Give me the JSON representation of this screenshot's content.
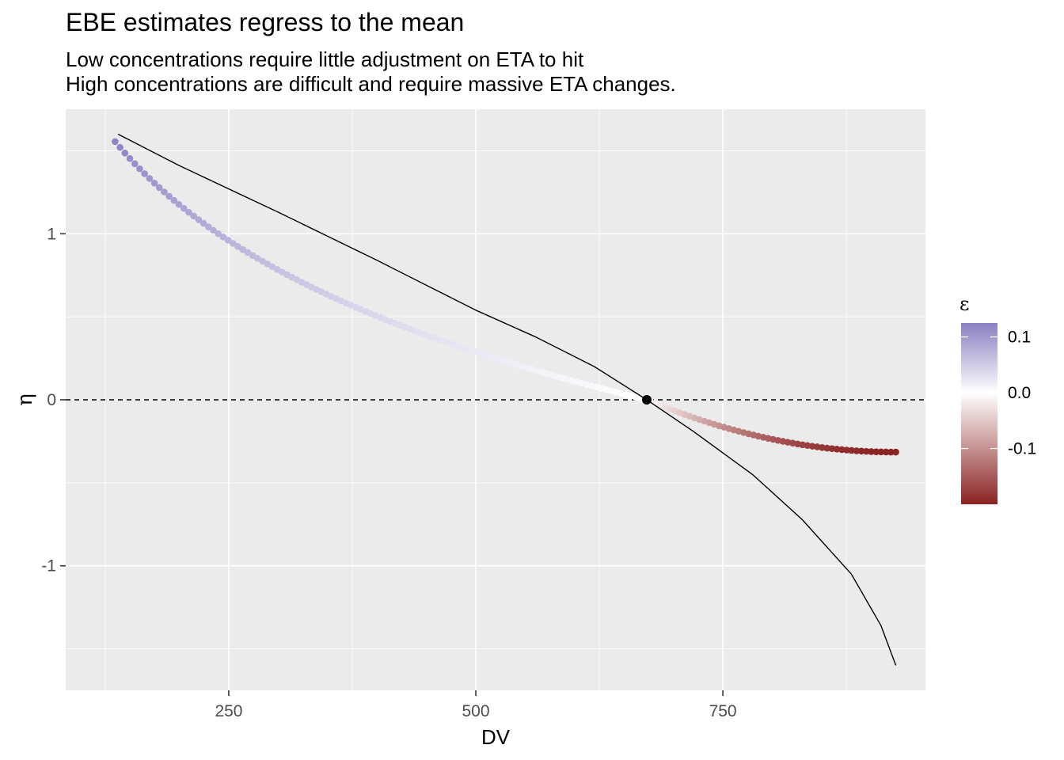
{
  "chart_data": {
    "type": "scatter",
    "title": "EBE estimates regress to the mean",
    "subtitle_lines": [
      "Low concentrations require little adjustment on ETA to hit",
      "High concentrations are difficult and require massive ETA changes."
    ],
    "xlabel": "DV",
    "ylabel": "η",
    "xlim": [
      85,
      955
    ],
    "ylim": [
      -1.75,
      1.75
    ],
    "x_ticks": [
      250,
      500,
      750
    ],
    "x_tick_labels": [
      "250",
      "500",
      "750"
    ],
    "y_ticks": [
      -1,
      0,
      1
    ],
    "y_tick_labels": [
      "-1",
      "0",
      "1"
    ],
    "grid": true,
    "panel_background": "#EBEBEB",
    "grid_color": "#FFFFFF",
    "reference_line": {
      "y": 0,
      "style": "dashed",
      "color": "#000000"
    },
    "reference_point": {
      "x": 673,
      "y": 0,
      "color": "#000000"
    },
    "ebe_points": {
      "x_start": 135,
      "x_end": 925,
      "n_points": 160,
      "eta_at_start": 1.555,
      "eta_at_end": -0.315,
      "epsilon_at_start": 0.12,
      "epsilon_at_end": -0.2,
      "reference_x": 673
    },
    "true_curve": {
      "type": "line",
      "color": "#000000",
      "points": [
        [
          138,
          1.6
        ],
        [
          200,
          1.41
        ],
        [
          300,
          1.13
        ],
        [
          400,
          0.84
        ],
        [
          500,
          0.54
        ],
        [
          560,
          0.38
        ],
        [
          620,
          0.2
        ],
        [
          673,
          0.0
        ],
        [
          720,
          -0.19
        ],
        [
          780,
          -0.45
        ],
        [
          830,
          -0.72
        ],
        [
          880,
          -1.05
        ],
        [
          910,
          -1.36
        ],
        [
          925,
          -1.6
        ]
      ]
    },
    "legend": {
      "title": "ε",
      "placement": "right",
      "type": "colorbar",
      "limits": [
        -0.2,
        0.125
      ],
      "breaks": [
        0.1,
        0.0,
        -0.1
      ],
      "break_labels": [
        "0.1",
        "0.0",
        "-0.1"
      ],
      "low_color": "#8B2323",
      "mid_color": "#FFFFFF",
      "high_color": "#8B7FC2"
    }
  }
}
